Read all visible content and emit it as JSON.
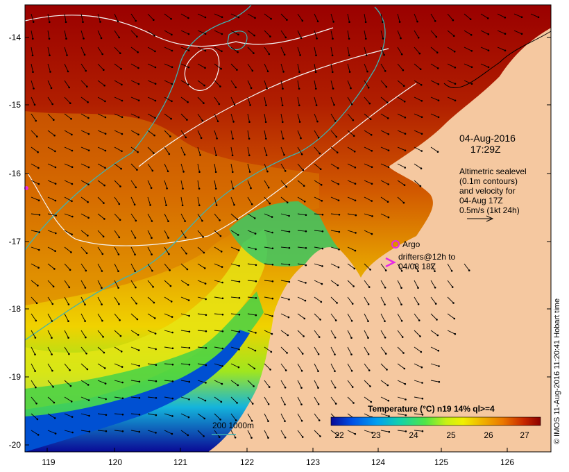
{
  "map": {
    "axes": {
      "lat_ticks": [
        "-14",
        "-15",
        "-16",
        "-17",
        "-18",
        "-19",
        "-20"
      ],
      "lon_ticks": [
        "119",
        "120",
        "121",
        "122",
        "123",
        "124",
        "125",
        "126"
      ]
    },
    "annotations": {
      "date_line1": "04-Aug-2016",
      "date_line2": "17:29Z",
      "altimetry_lines": [
        "Altimetric sealevel",
        "(0.1m contours)",
        "and velocity for",
        "04-Aug 17Z",
        "0.5m/s (1kt 24h)"
      ],
      "argo_label": "Argo",
      "drifters_line1": "drifters@12h to",
      "drifters_line2": "04/08 18Z",
      "bathy_label": "200  1000m"
    },
    "colorbar": {
      "title": "Temperature (°C) n19 14% ql>=4",
      "tick_labels": [
        "22",
        "23",
        "24",
        "25",
        "26",
        "27"
      ],
      "colors": [
        "#0a0a96",
        "#0050e6",
        "#00a0f0",
        "#14d2aa",
        "#50e646",
        "#b4f014",
        "#f0f000",
        "#f0b400",
        "#eb7800",
        "#d23c00",
        "#a00a00",
        "#8c0000"
      ]
    },
    "credit": "© IMOS 11-Aug-2016 11:20:41 Hobart time",
    "colors": {
      "land": "#f5c8a0",
      "contour": "#f5f5f5",
      "bathy": "#3cb4b4",
      "argo": "#e628e6"
    }
  }
}
